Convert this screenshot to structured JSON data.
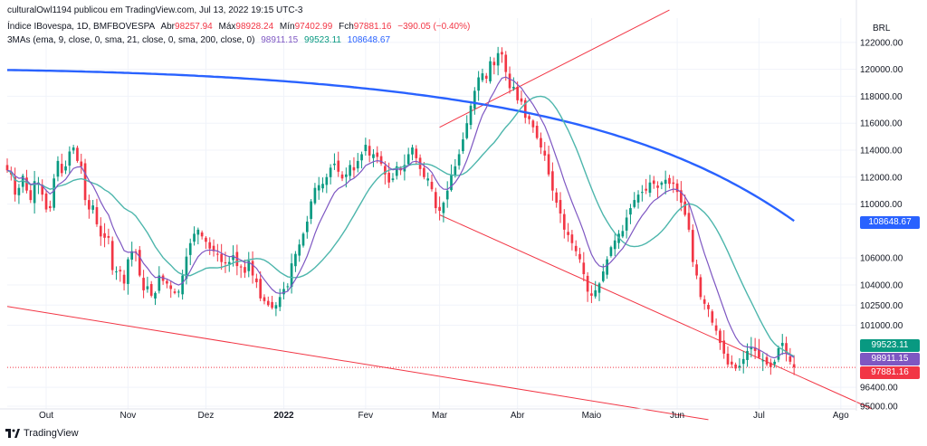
{
  "header": {
    "publisher": "culturalOwl1194 publicou em TradingView.com, Jul 13, 2022 19:15 UTC-3",
    "symbol": "Índice IBovespa, 1D, BMFBOVESPA",
    "open_label": "Abr",
    "open": "98257.94",
    "high_label": "Máx",
    "high": "98928.24",
    "low_label": "Mín",
    "low": "97402.99",
    "close_label": "Fch",
    "close": "97881.16",
    "change": "−390.05 (−0.40%)",
    "ma_title": "3MAs (ema, 9, close, 0, sma, 21, close, 0, sma, 200, close, 0)",
    "ma1": "98911.15",
    "ma2": "99523.11",
    "ma3": "108648.67"
  },
  "currency": "BRL",
  "footer_brand": "TradingView",
  "colors": {
    "up": "#089981",
    "down": "#f23645",
    "ma1": "#7e57c2",
    "ma2": "#4db6ac",
    "ma3": "#2962ff",
    "trend": "#f23645"
  },
  "price_tags": [
    {
      "name": "ma3-tag",
      "text": "108648.67",
      "value": 108648.67,
      "color": "#2962ff"
    },
    {
      "name": "ma2-tag",
      "text": "99523.11",
      "value": 99523.11,
      "color": "#089981"
    },
    {
      "name": "ma1-tag",
      "text": "98911.15",
      "value": 98911.15,
      "color": "#7e57c2"
    },
    {
      "name": "close-tag",
      "text": "97881.16",
      "value": 97881.16,
      "color": "#f23645"
    }
  ],
  "chart_data": {
    "type": "candlestick",
    "y_ticks": [
      {
        "value": 122000,
        "label": "122000.00"
      },
      {
        "value": 120000,
        "label": "120000.00"
      },
      {
        "value": 118000,
        "label": "118000.00"
      },
      {
        "value": 116000,
        "label": "116000.00"
      },
      {
        "value": 114000,
        "label": "114000.00"
      },
      {
        "value": 112000,
        "label": "112000.00"
      },
      {
        "value": 110000,
        "label": "110000.00"
      },
      {
        "value": 106000,
        "label": "106000.00"
      },
      {
        "value": 104000,
        "label": "104000.00"
      },
      {
        "value": 102500,
        "label": "102500.00"
      },
      {
        "value": 101000,
        "label": "101000.00"
      },
      {
        "value": 96400,
        "label": "96400.00"
      },
      {
        "value": 95000,
        "label": "95000.00"
      }
    ],
    "x_ticks": [
      {
        "index": 10,
        "label": "Out"
      },
      {
        "index": 31,
        "label": "Nov"
      },
      {
        "index": 51,
        "label": "Dez"
      },
      {
        "index": 71,
        "label": "2022",
        "bold": true
      },
      {
        "index": 92,
        "label": "Fev"
      },
      {
        "index": 111,
        "label": "Mar"
      },
      {
        "index": 131,
        "label": "Abr"
      },
      {
        "index": 150,
        "label": "Maio"
      },
      {
        "index": 172,
        "label": "Jun"
      },
      {
        "index": 193,
        "label": "Jul"
      },
      {
        "index": 214,
        "label": "Ago"
      }
    ],
    "ylim": [
      94800,
      123800
    ],
    "index_range": [
      0,
      218
    ],
    "closes": [
      112500,
      112200,
      110700,
      111200,
      112100,
      111000,
      110300,
      111700,
      111600,
      110700,
      109600,
      109700,
      111900,
      113200,
      112300,
      112800,
      113900,
      114200,
      113200,
      112800,
      110300,
      109600,
      109900,
      108500,
      107600,
      107500,
      107500,
      105100,
      105000,
      105000,
      104100,
      105900,
      106500,
      106400,
      104700,
      103600,
      103900,
      103200,
      103400,
      104700,
      104300,
      104100,
      103700,
      103400,
      103500,
      104700,
      106100,
      107100,
      107800,
      108100,
      107600,
      107200,
      106700,
      106500,
      106300,
      105700,
      105600,
      105700,
      106200,
      105400,
      105300,
      104900,
      105800,
      104700,
      104200,
      103000,
      102800,
      102500,
      102300,
      102500,
      103100,
      103700,
      103900,
      105600,
      106300,
      107000,
      107800,
      108700,
      110200,
      111200,
      111400,
      111500,
      112000,
      112700,
      113000,
      112400,
      111900,
      112200,
      112900,
      112500,
      113200,
      113700,
      114400,
      113600,
      113700,
      113500,
      113000,
      112200,
      111600,
      111900,
      112800,
      112500,
      112900,
      113700,
      114200,
      113400,
      112600,
      112000,
      111900,
      111100,
      109700,
      109500,
      110100,
      111000,
      112200,
      112800,
      113700,
      114800,
      116000,
      117300,
      118400,
      119400,
      119700,
      119300,
      120600,
      120300,
      121200,
      121100,
      119800,
      118600,
      118700,
      117700,
      117600,
      116400,
      116300,
      115700,
      114900,
      114200,
      113600,
      112200,
      111000,
      110100,
      109300,
      108100,
      107700,
      107100,
      106500,
      105900,
      104800,
      103500,
      103200,
      103600,
      104100,
      105000,
      105900,
      106800,
      107300,
      107800,
      108000,
      109000,
      109700,
      110300,
      110700,
      110900,
      111000,
      111600,
      111500,
      111200,
      111600,
      111800,
      111500,
      111500,
      110900,
      110100,
      109200,
      108100,
      105700,
      104700,
      103100,
      102600,
      102200,
      101200,
      100600,
      99700,
      98900,
      98100,
      98100,
      97800,
      98000,
      98500,
      99100,
      99400,
      99100,
      98600,
      98400,
      98100,
      97900,
      98300,
      99300,
      99700,
      98900,
      98300,
      97881.16
    ],
    "candle_seed": 7,
    "series": [
      {
        "name": "EMA 9",
        "value_last": 98911.15
      },
      {
        "name": "SMA 21",
        "value_last": 99523.11
      },
      {
        "name": "SMA 200",
        "value_last": 108648.67
      }
    ],
    "trend_lines": [
      {
        "name": "upper-channel-line",
        "from": {
          "index": 111,
          "value": 115700
        },
        "to": {
          "index": 170,
          "value": 124400
        }
      },
      {
        "name": "middle-channel-line",
        "from": {
          "index": 111,
          "value": 109200
        },
        "to": {
          "index": 222,
          "value": 94800
        }
      },
      {
        "name": "lower-channel-line",
        "from": {
          "index": 0,
          "value": 102400
        },
        "to": {
          "index": 180,
          "value": 94000
        }
      }
    ]
  }
}
